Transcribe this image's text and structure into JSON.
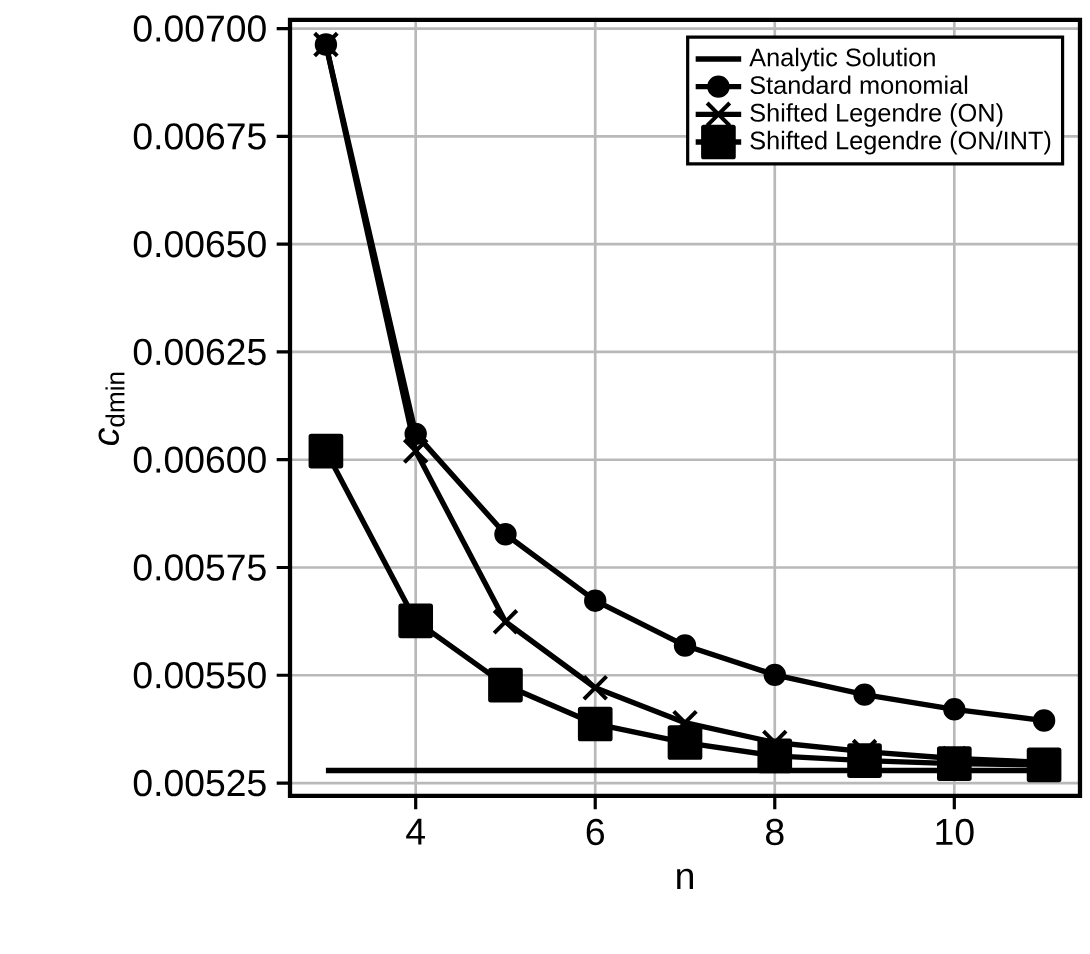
{
  "chart_data": {
    "type": "line",
    "xlabel": "n",
    "ylabel": "*c*$_{dmin}$",
    "xlim": [
      2.6,
      11.4
    ],
    "ylim": [
      0.00522,
      0.00702
    ],
    "xticks": [
      4,
      6,
      8,
      10
    ],
    "yticks": [
      {
        "value": 0.00525,
        "label": "0.00525"
      },
      {
        "value": 0.0055,
        "label": "0.00550"
      },
      {
        "value": 0.00575,
        "label": "0.00575"
      },
      {
        "value": 0.006,
        "label": "0.00600"
      },
      {
        "value": 0.00625,
        "label": "0.00625"
      },
      {
        "value": 0.0065,
        "label": "0.00650"
      },
      {
        "value": 0.00675,
        "label": "0.00675"
      },
      {
        "value": 0.007,
        "label": "0.00700"
      }
    ],
    "grid": true,
    "legend": "top right",
    "line_style": "solid",
    "series": [
      {
        "name": "Analytic Solution",
        "color": "#000000",
        "marker": "none",
        "x": [
          3,
          11
        ],
        "values": [
          0.005279,
          0.005279
        ]
      },
      {
        "name": "Standard monomial",
        "color": "#000000",
        "marker": "circle",
        "x": [
          3,
          4,
          5,
          6,
          7,
          8,
          9,
          10,
          11
        ],
        "values": [
          0.006963,
          0.00606,
          0.005827,
          0.005673,
          0.005569,
          0.005501,
          0.005455,
          0.005421,
          0.005395
        ]
      },
      {
        "name": "Shifted Legendre (ON)",
        "color": "#000000",
        "marker": "cross",
        "x": [
          3,
          4,
          5,
          6,
          7,
          8,
          9,
          10,
          11
        ],
        "values": [
          0.006963,
          0.00602,
          0.005624,
          0.005471,
          0.00539,
          0.005344,
          0.005323,
          0.005307,
          0.005298
        ]
      },
      {
        "name": "Shifted Legendre (ON/INT)",
        "color": "#000000",
        "marker": "square",
        "x": [
          3,
          4,
          5,
          6,
          7,
          8,
          9,
          10,
          11
        ],
        "values": [
          0.00602,
          0.005626,
          0.005477,
          0.005387,
          0.005344,
          0.005313,
          0.005302,
          0.005295,
          0.005292
        ]
      }
    ]
  }
}
